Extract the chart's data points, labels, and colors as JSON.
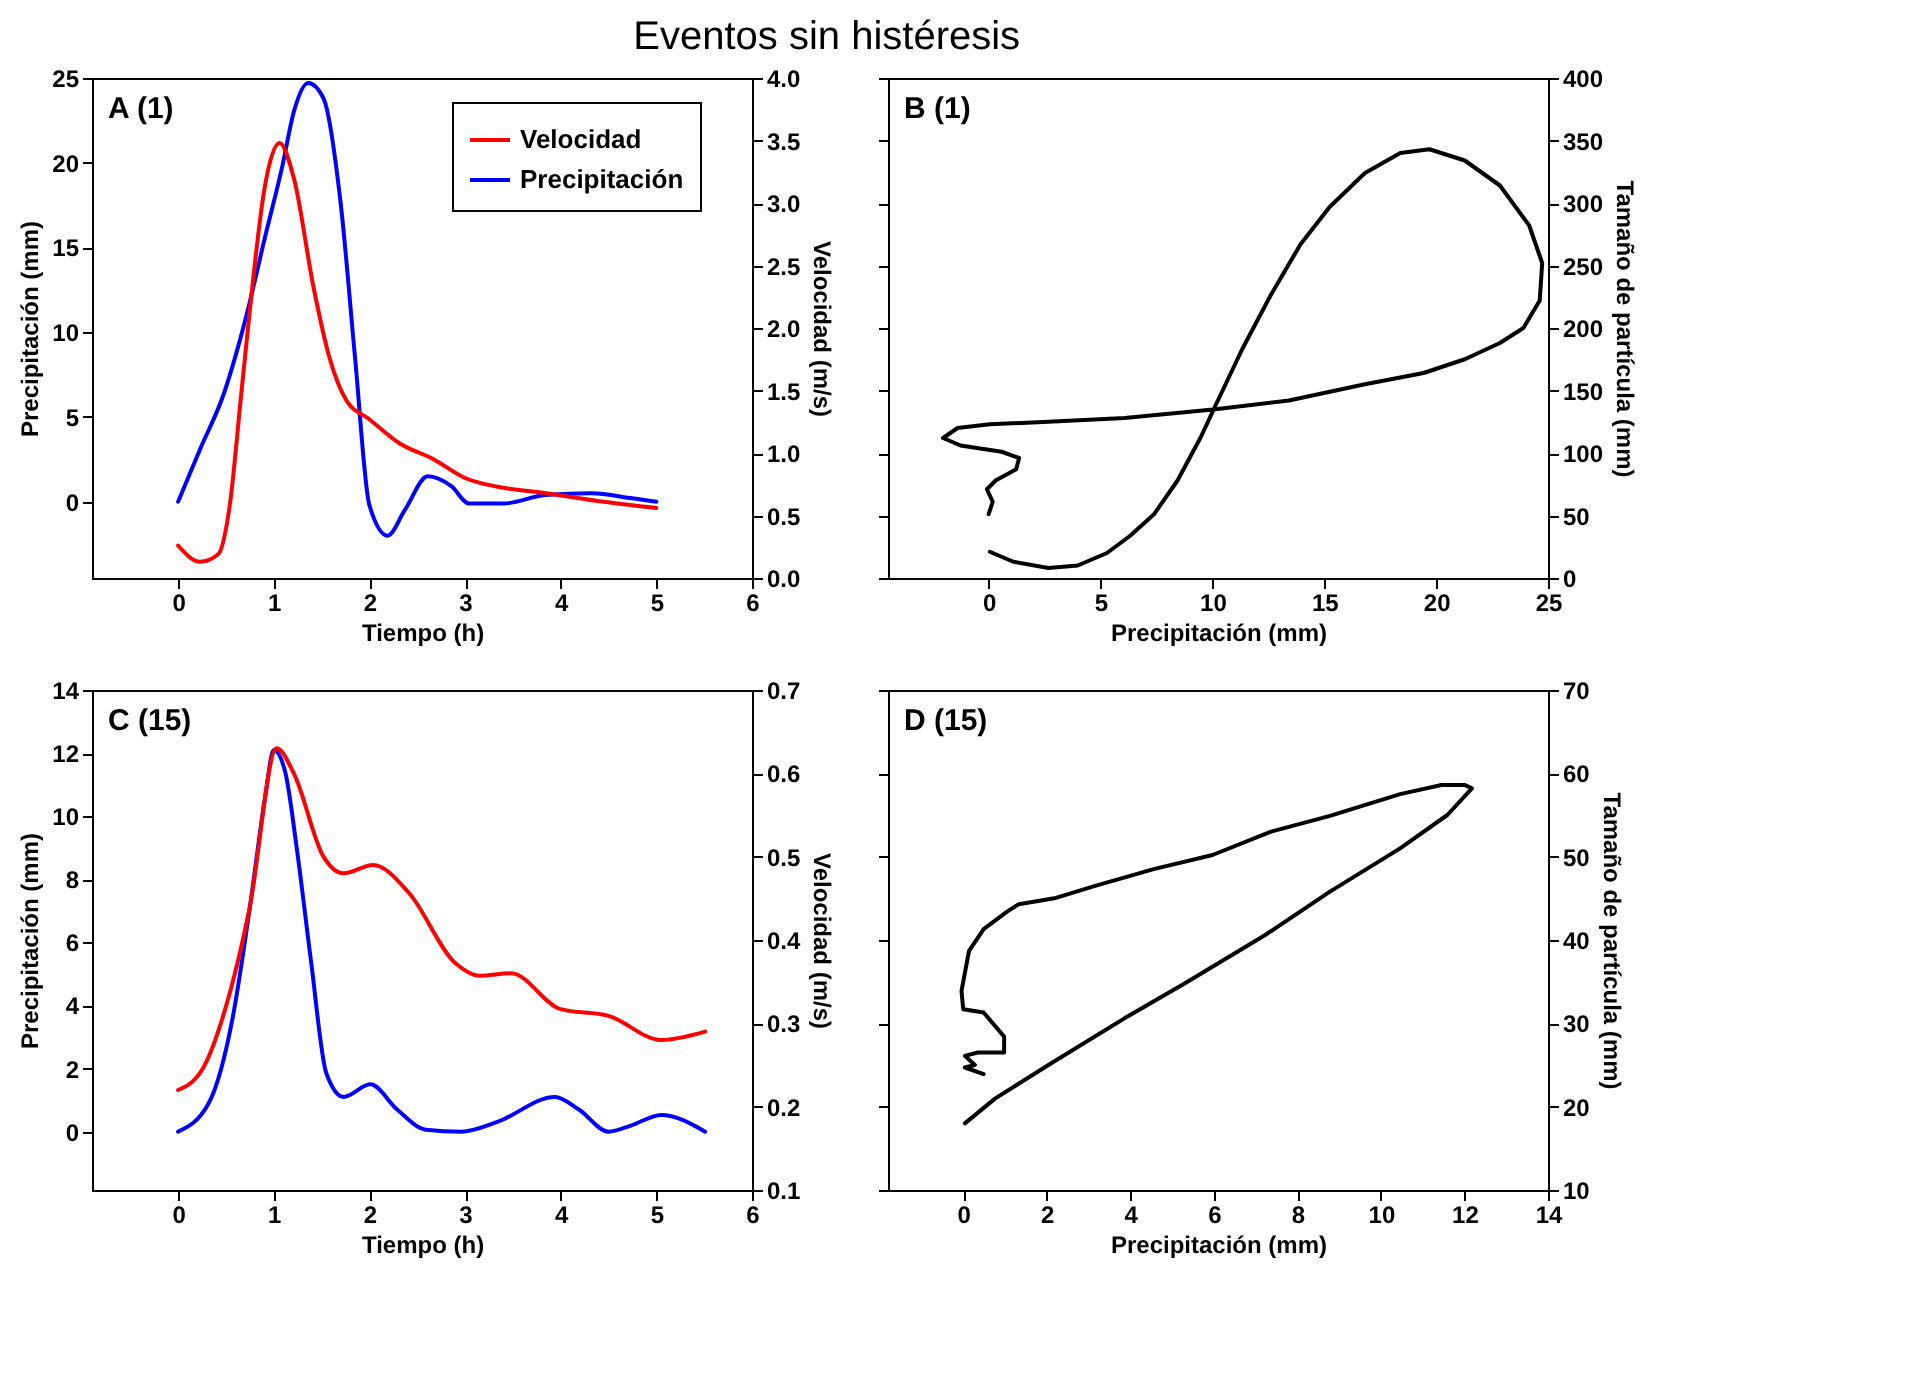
{
  "chart_data": [
    {
      "type": "line",
      "title": "Eventos sin histéresis",
      "annotations": [
        "A (1)"
      ],
      "xlabel": "Tiempo (h)",
      "ylabel": "Precipitación (mm)",
      "y2label": "Velocidad (m/s)",
      "legend": "top right",
      "xlim": [
        -0.9,
        6
      ],
      "xticks": [
        0,
        1,
        2,
        3,
        4,
        5,
        6
      ],
      "ylim": [
        -4.5,
        25
      ],
      "yticks": [
        0,
        5,
        10,
        15,
        20,
        25
      ],
      "y2lim": [
        0,
        4
      ],
      "y2ticks": [
        {
          "value": 0,
          "label": "0.0"
        },
        {
          "value": 0.5,
          "label": "0.5"
        },
        {
          "value": 1,
          "label": "1.0"
        },
        {
          "value": 1.5,
          "label": "1.5"
        },
        {
          "value": 2,
          "label": "2.0"
        },
        {
          "value": 2.5,
          "label": "2.5"
        },
        {
          "value": 3,
          "label": "3.0"
        },
        {
          "value": 3.5,
          "label": "3.5"
        },
        {
          "value": 4,
          "label": "4.0"
        }
      ],
      "series": [
        {
          "name": "Velocidad",
          "color": "#ff0000",
          "axis": "y2",
          "x": [
            0,
            0.23,
            0.42,
            0.54,
            0.66,
            0.78,
            0.9,
            1.06,
            1.21,
            1.42,
            1.58,
            1.76,
            2.0,
            2.31,
            2.67,
            3.0,
            3.34,
            3.83,
            4.45,
            5.0
          ],
          "values": [
            0.26,
            0.13,
            0.19,
            0.58,
            1.47,
            2.36,
            3.1,
            3.48,
            3.2,
            2.31,
            1.77,
            1.42,
            1.27,
            1.08,
            0.95,
            0.8,
            0.73,
            0.68,
            0.61,
            0.56
          ]
        },
        {
          "name": "Precipitación",
          "color": "#0000ff",
          "axis": "y",
          "x": [
            0,
            0.23,
            0.48,
            0.72,
            0.9,
            1.09,
            1.21,
            1.36,
            1.52,
            1.7,
            1.85,
            2.0,
            2.19,
            2.37,
            2.61,
            2.86,
            3.04,
            3.41,
            3.84,
            4.32,
            4.75,
            5.0
          ],
          "values": [
            0,
            3.1,
            6.4,
            11.1,
            15.4,
            19.8,
            23.0,
            24.7,
            23.8,
            17.6,
            8.5,
            -0.2,
            -2.0,
            -0.5,
            1.5,
            0.9,
            -0.1,
            -0.1,
            0.4,
            0.5,
            0.2,
            0
          ]
        }
      ]
    },
    {
      "type": "line",
      "annotations": [
        "B (1)"
      ],
      "xlabel": "Precipitación (mm)",
      "y2label": "Tamaño de partícula (mm)",
      "legend": false,
      "xlim": [
        -4.5,
        25
      ],
      "xticks": [
        0,
        5,
        10,
        15,
        20,
        25
      ],
      "y2lim": [
        0,
        400
      ],
      "y2ticks": [
        0,
        50,
        100,
        150,
        200,
        250,
        300,
        350,
        400
      ],
      "series": [
        {
          "color": "#000000",
          "axis": "y2",
          "x": [
            0.05,
            1.1,
            2.67,
            3.98,
            5.29,
            6.34,
            7.39,
            8.44,
            9.49,
            10.14,
            11.33,
            12.63,
            13.94,
            15.25,
            16.82,
            18.4,
            19.7,
            21.28,
            22.85,
            24.16,
            24.74,
            24.63,
            23.9,
            22.85,
            21.28,
            19.44,
            16.82,
            13.42,
            10.14,
            6.08,
            2.67,
            0.05,
            -1.39,
            -2.04,
            -1.26,
            0.58,
            1.36,
            1.23,
            0.31,
            -0.08,
            0.18,
            0
          ],
          "values": [
            21,
            13,
            8,
            10,
            20,
            34,
            51,
            78,
            113,
            138,
            183,
            227,
            267,
            297,
            324,
            340,
            343,
            334,
            314,
            282,
            252,
            222,
            200,
            188,
            175,
            164,
            155,
            142,
            135,
            128,
            125,
            123,
            120,
            112,
            106,
            101,
            96,
            87,
            78,
            71,
            61,
            51
          ]
        }
      ]
    },
    {
      "type": "line",
      "annotations": [
        "C (15)"
      ],
      "xlabel": "Tiempo (h)",
      "ylabel": "Precipitación (mm)",
      "y2label": "Velocidad (m/s)",
      "legend": "top right",
      "xlim": [
        -0.9,
        6
      ],
      "xticks": [
        0,
        1,
        2,
        3,
        4,
        5,
        6
      ],
      "ylim": [
        -1.85,
        14
      ],
      "yticks": [
        0,
        2,
        4,
        6,
        8,
        10,
        12,
        14
      ],
      "y2lim": [
        0.1,
        0.7
      ],
      "y2ticks": [
        0.1,
        0.2,
        0.3,
        0.4,
        0.5,
        0.6,
        0.7
      ],
      "series": [
        {
          "name": "Velocidad",
          "color": "#ff0000",
          "axis": "y2",
          "x": [
            0,
            0.26,
            0.5,
            0.75,
            1.03,
            1.21,
            1.52,
            1.73,
            2.04,
            2.41,
            2.9,
            3.15,
            3.48,
            4.0,
            4.5,
            5.05,
            5.51
          ],
          "values": [
            0.22,
            0.246,
            0.32,
            0.44,
            0.63,
            0.6,
            0.5,
            0.48,
            0.49,
            0.457,
            0.372,
            0.357,
            0.36,
            0.317,
            0.309,
            0.28,
            0.29
          ]
        },
        {
          "name": "Precipitación",
          "color": "#0000ff",
          "axis": "y",
          "x": [
            0,
            0.32,
            0.57,
            0.75,
            0.91,
            1.0,
            1.12,
            1.24,
            1.39,
            1.55,
            1.73,
            2.01,
            2.29,
            2.59,
            2.96,
            3.33,
            3.94,
            4.19,
            4.5,
            4.74,
            5.05,
            5.51
          ],
          "values": [
            0,
            0.9,
            3.6,
            7.1,
            10.6,
            12.1,
            11.4,
            9.0,
            5.4,
            1.85,
            1.1,
            1.5,
            0.7,
            0.06,
            0,
            0.3,
            1.1,
            0.7,
            0,
            0.2,
            0.53,
            0
          ]
        }
      ]
    },
    {
      "type": "line",
      "annotations": [
        "D (15)"
      ],
      "xlabel": "Precipitación (mm)",
      "y2label": "Tamaño de partícula (mm)",
      "legend": false,
      "xlim": [
        -1.8,
        14
      ],
      "xticks": [
        0,
        2,
        4,
        6,
        8,
        10,
        12,
        14
      ],
      "y2lim": [
        10,
        70
      ],
      "y2ticks": [
        10,
        20,
        30,
        40,
        50,
        60,
        70
      ],
      "series": [
        {
          "color": "#000000",
          "axis": "y2",
          "x": [
            0.04,
            0.77,
            2.04,
            3.86,
            5.27,
            7.23,
            8.78,
            10.46,
            11.59,
            12.18,
            12.01,
            11.45,
            10.46,
            8.78,
            7.37,
            5.97,
            4.56,
            3.16,
            2.18,
            1.33,
            1.05,
            0.49,
            0.14,
            -0.04,
            0,
            0.49,
            0.98,
            0.98,
            0.35,
            0.04,
            0.28,
            0.04,
            0.49
          ],
          "values": [
            18,
            21,
            25,
            30.6,
            34.7,
            40.6,
            45.8,
            51,
            55,
            58.2,
            58.6,
            58.6,
            57.5,
            54.9,
            53,
            50.2,
            48.5,
            46.5,
            45,
            44.3,
            43.4,
            41.3,
            38.7,
            33.9,
            31.7,
            31.3,
            28.4,
            26.5,
            26.5,
            26.1,
            25,
            24.7,
            23.9
          ]
        }
      ]
    }
  ]
}
